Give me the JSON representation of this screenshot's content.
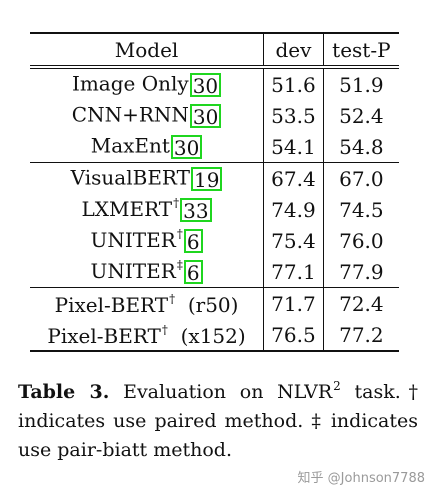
{
  "table": {
    "headers": [
      "Model",
      "dev",
      "test-P"
    ],
    "rows": [
      {
        "model": "Image Only",
        "sup": "",
        "suffix": "",
        "cite": "30",
        "dev": "51.6",
        "test": "51.9",
        "bold": false
      },
      {
        "model": "CNN+RNN",
        "sup": "",
        "suffix": "",
        "cite": "30",
        "dev": "53.5",
        "test": "52.4",
        "bold": false
      },
      {
        "model": "MaxEnt",
        "sup": "",
        "suffix": "",
        "cite": "30",
        "dev": "54.1",
        "test": "54.8",
        "bold": false
      },
      {
        "model": "VisualBERT",
        "sup": "",
        "suffix": "",
        "cite": "19",
        "dev": "67.4",
        "test": "67.0",
        "bold": false
      },
      {
        "model": "LXMERT",
        "sup": "†",
        "suffix": "",
        "cite": "33",
        "dev": "74.9",
        "test": "74.5",
        "bold": false
      },
      {
        "model": "UNITER",
        "sup": "†",
        "suffix": "",
        "cite": "6",
        "dev": "75.4",
        "test": "76.0",
        "bold": false
      },
      {
        "model": "UNITER",
        "sup": "‡",
        "suffix": "",
        "cite": "6",
        "dev": "77.1",
        "test": "77.9",
        "bold": true
      },
      {
        "model": "Pixel-BERT",
        "sup": "†",
        "suffix": "(r50)",
        "cite": "",
        "dev": "71.7",
        "test": "72.4",
        "bold": false
      },
      {
        "model": "Pixel-BERT",
        "sup": "†",
        "suffix": "(x152)",
        "cite": "",
        "dev": "76.5",
        "test": "77.2",
        "bold": false
      }
    ]
  },
  "caption": {
    "label": "Table 3.",
    "text_a": "Evaluation on NLVR",
    "sup": "2",
    "text_b": "task.† indicates use paired method. ‡ indicates use pair-biatt method."
  },
  "watermark": "知乎 @Johnson7788"
}
